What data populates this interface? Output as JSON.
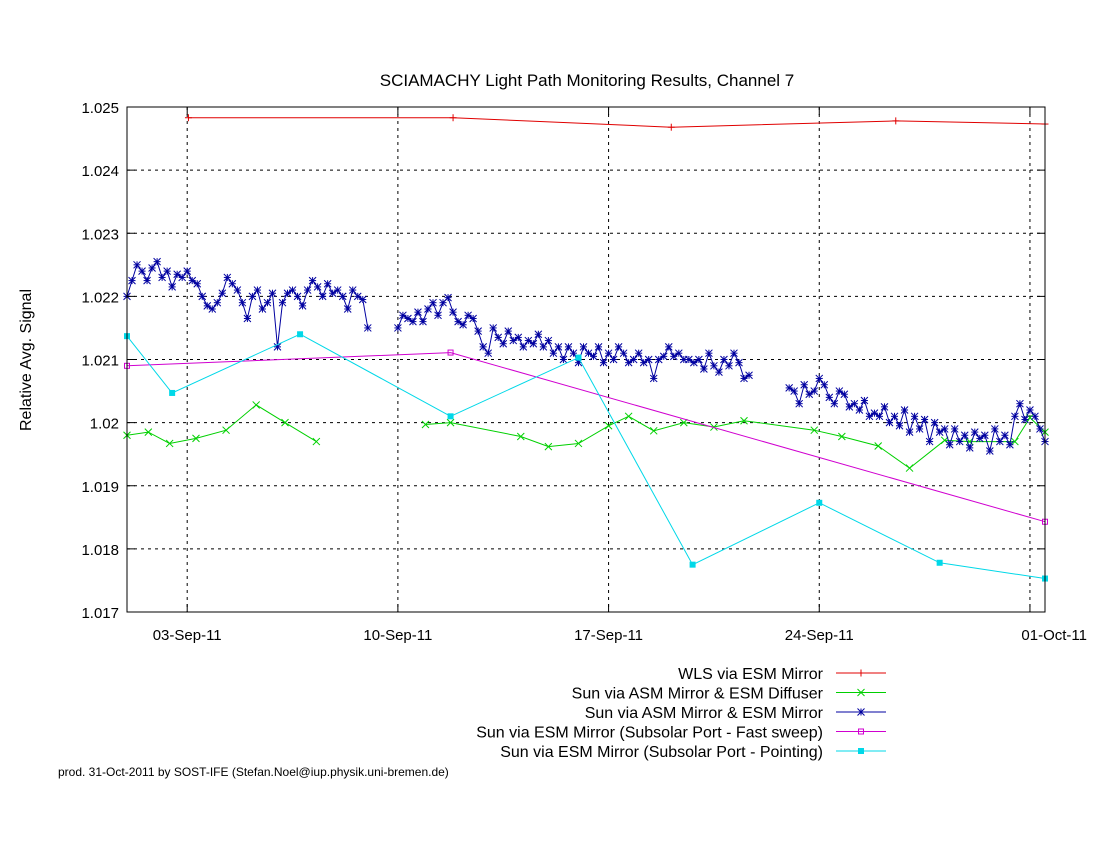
{
  "chart_data": {
    "type": "line",
    "title": "SCIAMACHY Light Path Monitoring Results, Channel 7",
    "xlabel": "",
    "ylabel": "Relative Avg. Signal",
    "x_axis": {
      "type": "date",
      "min": "2011-09-01T00:00",
      "max": "2011-10-01T12:00",
      "ticks": [
        {
          "date": "2011-09-03",
          "label": "03-Sep-11"
        },
        {
          "date": "2011-09-10",
          "label": "10-Sep-11"
        },
        {
          "date": "2011-09-17",
          "label": "17-Sep-11"
        },
        {
          "date": "2011-09-24",
          "label": "24-Sep-11"
        },
        {
          "date": "2011-10-01",
          "label": "01-Oct-11"
        }
      ]
    },
    "ylim": [
      1.017,
      1.025
    ],
    "yticks": [
      {
        "value": 1.017,
        "label": "1.017"
      },
      {
        "value": 1.018,
        "label": "1.018"
      },
      {
        "value": 1.019,
        "label": "1.019"
      },
      {
        "value": 1.02,
        "label": "1.02"
      },
      {
        "value": 1.021,
        "label": "1.021"
      },
      {
        "value": 1.022,
        "label": "1.022"
      },
      {
        "value": 1.023,
        "label": "1.023"
      },
      {
        "value": 1.024,
        "label": "1.024"
      },
      {
        "value": 1.025,
        "label": "1.025"
      }
    ],
    "grid": true,
    "legend_position": "bottom-right",
    "series": [
      {
        "name": "WLS via ESM Mirror",
        "color": "#e00000",
        "marker": "plus",
        "points": [
          [
            "2011-09-03T01:00",
            1.02483
          ],
          [
            "2011-09-11T20:00",
            1.02483
          ],
          [
            "2011-09-19T02:00",
            1.02468
          ],
          [
            "2011-09-26T13:00",
            1.02478
          ],
          [
            "2011-10-01T12:00",
            1.02473
          ]
        ]
      },
      {
        "name": "Sun via ASM Mirror & ESM Diffuser",
        "color": "#00d000",
        "marker": "cross",
        "points": [
          [
            "2011-09-01T00:00",
            1.0198
          ],
          [
            "2011-09-01T17:00",
            1.01985
          ],
          [
            "2011-09-02T10:00",
            1.01967
          ],
          [
            "2011-09-03T07:00",
            1.01975
          ],
          [
            "2011-09-04T07:00",
            1.01988
          ],
          [
            "2011-09-05T07:00",
            1.02028
          ],
          [
            "2011-09-06T06:00",
            1.02
          ],
          [
            "2011-09-07T07:00",
            1.0197
          ],
          [
            "2011-09-10T22:00",
            1.01997
          ],
          [
            "2011-09-11T18:00",
            1.02
          ],
          [
            "2011-09-14T02:00",
            1.01978
          ],
          [
            "2011-09-15T00:00",
            1.01962
          ],
          [
            "2011-09-16T00:00",
            1.01967
          ],
          [
            "2011-09-17T00:00",
            1.01995
          ],
          [
            "2011-09-17T16:00",
            1.0201
          ],
          [
            "2011-09-18T12:00",
            1.01987
          ],
          [
            "2011-09-19T12:00",
            1.02
          ],
          [
            "2011-09-20T12:00",
            1.01993
          ],
          [
            "2011-09-21T12:00",
            1.02003
          ],
          [
            "2011-09-23T20:00",
            1.01988
          ],
          [
            "2011-09-24T18:00",
            1.01978
          ],
          [
            "2011-09-25T23:00",
            1.01963
          ],
          [
            "2011-09-27T00:00",
            1.01928
          ],
          [
            "2011-09-28T04:00",
            1.01972
          ],
          [
            "2011-09-29T00:00",
            1.0197
          ],
          [
            "2011-09-30T12:00",
            1.0197
          ],
          [
            "2011-10-01T00:00",
            1.02008
          ],
          [
            "2011-10-01T12:00",
            1.01985
          ]
        ]
      },
      {
        "name": "Sun via ASM Mirror & ESM Mirror",
        "color": "#0000a0",
        "marker": "star",
        "points": [
          [
            "2011-09-01T00:00",
            1.022
          ],
          [
            "2011-09-01T04:00",
            1.02225
          ],
          [
            "2011-09-01T08:00",
            1.0225
          ],
          [
            "2011-09-01T12:00",
            1.0224
          ],
          [
            "2011-09-01T16:00",
            1.02225
          ],
          [
            "2011-09-01T20:00",
            1.02245
          ],
          [
            "2011-09-02T00:00",
            1.02255
          ],
          [
            "2011-09-02T04:00",
            1.0223
          ],
          [
            "2011-09-02T08:00",
            1.0224
          ],
          [
            "2011-09-02T12:00",
            1.02215
          ],
          [
            "2011-09-02T16:00",
            1.02235
          ],
          [
            "2011-09-02T20:00",
            1.0223
          ],
          [
            "2011-09-03T00:00",
            1.0224
          ],
          [
            "2011-09-03T04:00",
            1.02225
          ],
          [
            "2011-09-03T08:00",
            1.0222
          ],
          [
            "2011-09-03T12:00",
            1.022
          ],
          [
            "2011-09-03T16:00",
            1.02185
          ],
          [
            "2011-09-03T20:00",
            1.0218
          ],
          [
            "2011-09-04T00:00",
            1.0219
          ],
          [
            "2011-09-04T04:00",
            1.02205
          ],
          [
            "2011-09-04T08:00",
            1.0223
          ],
          [
            "2011-09-04T12:00",
            1.0222
          ],
          [
            "2011-09-04T16:00",
            1.0221
          ],
          [
            "2011-09-04T20:00",
            1.0219
          ],
          [
            "2011-09-05T00:00",
            1.02165
          ],
          [
            "2011-09-05T04:00",
            1.022
          ],
          [
            "2011-09-05T08:00",
            1.0221
          ],
          [
            "2011-09-05T12:00",
            1.0218
          ],
          [
            "2011-09-05T16:00",
            1.0219
          ],
          [
            "2011-09-05T20:00",
            1.02205
          ],
          [
            "2011-09-06T00:00",
            1.0212
          ],
          [
            "2011-09-06T04:00",
            1.0219
          ],
          [
            "2011-09-06T08:00",
            1.02205
          ],
          [
            "2011-09-06T12:00",
            1.0221
          ],
          [
            "2011-09-06T16:00",
            1.022
          ],
          [
            "2011-09-06T20:00",
            1.02185
          ],
          [
            "2011-09-07T00:00",
            1.0221
          ],
          [
            "2011-09-07T04:00",
            1.02225
          ],
          [
            "2011-09-07T08:00",
            1.02215
          ],
          [
            "2011-09-07T12:00",
            1.022
          ],
          [
            "2011-09-07T16:00",
            1.0222
          ],
          [
            "2011-09-07T20:00",
            1.02205
          ],
          [
            "2011-09-08T00:00",
            1.0221
          ],
          [
            "2011-09-08T04:00",
            1.022
          ],
          [
            "2011-09-08T08:00",
            1.0218
          ],
          [
            "2011-09-08T12:00",
            1.0221
          ],
          [
            "2011-09-08T16:00",
            1.022
          ],
          [
            "2011-09-08T20:00",
            1.02195
          ],
          [
            "2011-09-09T00:00",
            1.0215
          ],
          [
            "2011-09-10T00:00",
            1.0215
          ],
          [
            "2011-09-10T04:00",
            1.0217
          ],
          [
            "2011-09-10T08:00",
            1.02165
          ],
          [
            "2011-09-10T12:00",
            1.0216
          ],
          [
            "2011-09-10T16:00",
            1.02175
          ],
          [
            "2011-09-10T20:00",
            1.0216
          ],
          [
            "2011-09-11T00:00",
            1.0218
          ],
          [
            "2011-09-11T04:00",
            1.0219
          ],
          [
            "2011-09-11T08:00",
            1.0217
          ],
          [
            "2011-09-11T12:00",
            1.0219
          ],
          [
            "2011-09-11T16:00",
            1.02198
          ],
          [
            "2011-09-11T20:00",
            1.02175
          ],
          [
            "2011-09-12T00:00",
            1.0216
          ],
          [
            "2011-09-12T04:00",
            1.02155
          ],
          [
            "2011-09-12T08:00",
            1.0217
          ],
          [
            "2011-09-12T12:00",
            1.02165
          ],
          [
            "2011-09-12T16:00",
            1.02145
          ],
          [
            "2011-09-12T20:00",
            1.0212
          ],
          [
            "2011-09-13T00:00",
            1.0211
          ],
          [
            "2011-09-13T04:00",
            1.0215
          ],
          [
            "2011-09-13T08:00",
            1.02135
          ],
          [
            "2011-09-13T12:00",
            1.02125
          ],
          [
            "2011-09-13T16:00",
            1.02145
          ],
          [
            "2011-09-13T20:00",
            1.0213
          ],
          [
            "2011-09-14T00:00",
            1.02135
          ],
          [
            "2011-09-14T04:00",
            1.0212
          ],
          [
            "2011-09-14T08:00",
            1.0213
          ],
          [
            "2011-09-14T12:00",
            1.02125
          ],
          [
            "2011-09-14T16:00",
            1.0214
          ],
          [
            "2011-09-14T20:00",
            1.0212
          ],
          [
            "2011-09-15T00:00",
            1.0213
          ],
          [
            "2011-09-15T04:00",
            1.0211
          ],
          [
            "2011-09-15T08:00",
            1.0212
          ],
          [
            "2011-09-15T12:00",
            1.021
          ],
          [
            "2011-09-15T16:00",
            1.0212
          ],
          [
            "2011-09-15T20:00",
            1.0211
          ],
          [
            "2011-09-16T00:00",
            1.02095
          ],
          [
            "2011-09-16T04:00",
            1.0212
          ],
          [
            "2011-09-16T08:00",
            1.0211
          ],
          [
            "2011-09-16T12:00",
            1.02105
          ],
          [
            "2011-09-16T16:00",
            1.0212
          ],
          [
            "2011-09-16T20:00",
            1.02095
          ],
          [
            "2011-09-17T00:00",
            1.0211
          ],
          [
            "2011-09-17T04:00",
            1.021
          ],
          [
            "2011-09-17T08:00",
            1.0212
          ],
          [
            "2011-09-17T12:00",
            1.0211
          ],
          [
            "2011-09-17T16:00",
            1.02095
          ],
          [
            "2011-09-17T20:00",
            1.021
          ],
          [
            "2011-09-18T00:00",
            1.0211
          ],
          [
            "2011-09-18T04:00",
            1.02095
          ],
          [
            "2011-09-18T08:00",
            1.021
          ],
          [
            "2011-09-18T12:00",
            1.0207
          ],
          [
            "2011-09-18T16:00",
            1.021
          ],
          [
            "2011-09-18T20:00",
            1.02105
          ],
          [
            "2011-09-19T00:00",
            1.0212
          ],
          [
            "2011-09-19T04:00",
            1.02105
          ],
          [
            "2011-09-19T08:00",
            1.0211
          ],
          [
            "2011-09-19T12:00",
            1.021
          ],
          [
            "2011-09-19T16:00",
            1.021
          ],
          [
            "2011-09-19T20:00",
            1.02095
          ],
          [
            "2011-09-20T00:00",
            1.021
          ],
          [
            "2011-09-20T04:00",
            1.02085
          ],
          [
            "2011-09-20T08:00",
            1.0211
          ],
          [
            "2011-09-20T12:00",
            1.0209
          ],
          [
            "2011-09-20T16:00",
            1.0208
          ],
          [
            "2011-09-20T20:00",
            1.021
          ],
          [
            "2011-09-21T00:00",
            1.0209
          ],
          [
            "2011-09-21T04:00",
            1.0211
          ],
          [
            "2011-09-21T08:00",
            1.02095
          ],
          [
            "2011-09-21T12:00",
            1.0207
          ],
          [
            "2011-09-21T16:00",
            1.02075
          ],
          [
            "2011-09-23T00:00",
            1.02055
          ],
          [
            "2011-09-23T04:00",
            1.0205
          ],
          [
            "2011-09-23T08:00",
            1.0203
          ],
          [
            "2011-09-23T12:00",
            1.0206
          ],
          [
            "2011-09-23T16:00",
            1.02045
          ],
          [
            "2011-09-23T20:00",
            1.0205
          ],
          [
            "2011-09-24T00:00",
            1.0207
          ],
          [
            "2011-09-24T04:00",
            1.0206
          ],
          [
            "2011-09-24T08:00",
            1.0204
          ],
          [
            "2011-09-24T12:00",
            1.0203
          ],
          [
            "2011-09-24T16:00",
            1.0205
          ],
          [
            "2011-09-24T20:00",
            1.02045
          ],
          [
            "2011-09-25T00:00",
            1.02025
          ],
          [
            "2011-09-25T04:00",
            1.0203
          ],
          [
            "2011-09-25T08:00",
            1.0202
          ],
          [
            "2011-09-25T12:00",
            1.02035
          ],
          [
            "2011-09-25T16:00",
            1.0201
          ],
          [
            "2011-09-25T20:00",
            1.02015
          ],
          [
            "2011-09-26T00:00",
            1.0201
          ],
          [
            "2011-09-26T04:00",
            1.02025
          ],
          [
            "2011-09-26T08:00",
            1.02
          ],
          [
            "2011-09-26T12:00",
            1.0201
          ],
          [
            "2011-09-26T16:00",
            1.01995
          ],
          [
            "2011-09-26T20:00",
            1.0202
          ],
          [
            "2011-09-27T00:00",
            1.01985
          ],
          [
            "2011-09-27T04:00",
            1.0201
          ],
          [
            "2011-09-27T08:00",
            1.0199
          ],
          [
            "2011-09-27T12:00",
            1.02005
          ],
          [
            "2011-09-27T16:00",
            1.0197
          ],
          [
            "2011-09-27T20:00",
            1.02
          ],
          [
            "2011-09-28T00:00",
            1.01985
          ],
          [
            "2011-09-28T04:00",
            1.0199
          ],
          [
            "2011-09-28T08:00",
            1.01965
          ],
          [
            "2011-09-28T12:00",
            1.0199
          ],
          [
            "2011-09-28T16:00",
            1.0197
          ],
          [
            "2011-09-28T20:00",
            1.0198
          ],
          [
            "2011-09-29T00:00",
            1.0196
          ],
          [
            "2011-09-29T04:00",
            1.01985
          ],
          [
            "2011-09-29T08:00",
            1.01975
          ],
          [
            "2011-09-29T12:00",
            1.0198
          ],
          [
            "2011-09-29T16:00",
            1.01955
          ],
          [
            "2011-09-29T20:00",
            1.0199
          ],
          [
            "2011-09-30T00:00",
            1.0197
          ],
          [
            "2011-09-30T04:00",
            1.0198
          ],
          [
            "2011-09-30T08:00",
            1.01965
          ],
          [
            "2011-09-30T12:00",
            1.0201
          ],
          [
            "2011-09-30T16:00",
            1.0203
          ],
          [
            "2011-09-30T20:00",
            1.02005
          ],
          [
            "2011-10-01T00:00",
            1.0202
          ],
          [
            "2011-10-01T04:00",
            1.0201
          ],
          [
            "2011-10-01T08:00",
            1.0199
          ],
          [
            "2011-10-01T12:00",
            1.0197
          ]
        ]
      },
      {
        "name": "Sun via ESM Mirror (Subsolar Port - Fast sweep)",
        "color": "#d000d0",
        "marker": "square",
        "points": [
          [
            "2011-09-01T00:00",
            1.0209
          ],
          [
            "2011-09-11T18:00",
            1.02111
          ],
          [
            "2011-10-01T12:00",
            1.01843
          ]
        ]
      },
      {
        "name": "Sun via ESM Mirror (Subsolar Port - Pointing)",
        "color": "#00d8e8",
        "marker": "filled-square",
        "points": [
          [
            "2011-09-01T00:00",
            1.02137
          ],
          [
            "2011-09-02T12:00",
            1.02047
          ],
          [
            "2011-09-06T18:00",
            1.0214
          ],
          [
            "2011-09-11T18:00",
            1.0201
          ],
          [
            "2011-09-16T00:00",
            1.02103
          ],
          [
            "2011-09-19T19:00",
            1.01775
          ],
          [
            "2011-09-24T00:00",
            1.01873
          ],
          [
            "2011-09-28T00:00",
            1.01778
          ],
          [
            "2011-10-01T12:00",
            1.01753
          ]
        ]
      }
    ]
  },
  "footer": {
    "credit": "prod. 31-Oct-2011 by SOST-IFE (Stefan.Noel@iup.physik.uni-bremen.de)"
  }
}
